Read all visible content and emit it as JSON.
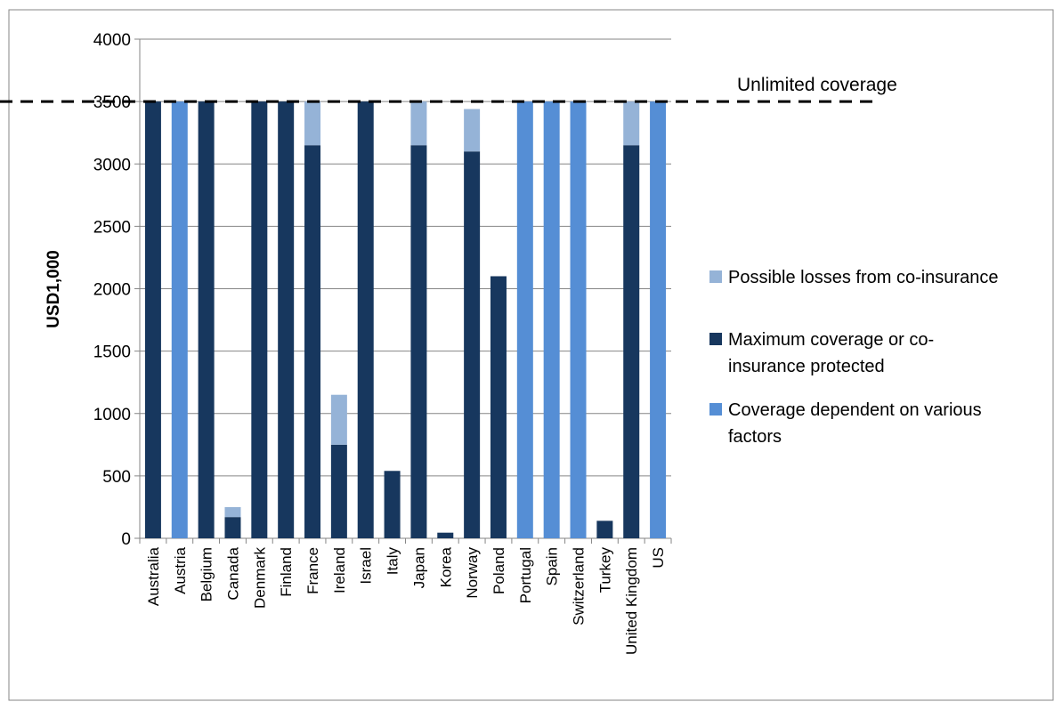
{
  "chart_data": {
    "type": "bar",
    "stacked": true,
    "ylabel": "USD1,000",
    "xlabel": "",
    "ylim": [
      0,
      4000
    ],
    "yticks": [
      0,
      500,
      1000,
      1500,
      2000,
      2500,
      3000,
      3500,
      4000
    ],
    "grid": true,
    "legend_position": "right",
    "categories": [
      "Australia",
      "Austria",
      "Belgium",
      "Canada",
      "Denmark",
      "Finland",
      "France",
      "Ireland",
      "Israel",
      "Italy",
      "Japan",
      "Korea",
      "Norway",
      "Poland",
      "Portugal",
      "Spain",
      "Switzerland",
      "Turkey",
      "United Kingdom",
      "US"
    ],
    "series": [
      {
        "name": "Maximum coverage or co-insurance protected",
        "color": "#17375e",
        "values": [
          3500,
          0,
          3500,
          170,
          3500,
          3500,
          3150,
          750,
          3500,
          540,
          3150,
          45,
          3100,
          2100,
          0,
          0,
          0,
          140,
          3150,
          0
        ]
      },
      {
        "name": "Possible losses from co-insurance",
        "color": "#95b3d7",
        "values": [
          0,
          0,
          0,
          80,
          0,
          0,
          350,
          400,
          0,
          0,
          350,
          0,
          340,
          0,
          0,
          0,
          0,
          0,
          350,
          0
        ]
      },
      {
        "name": "Coverage dependent on various factors",
        "color": "#558ed5",
        "values": [
          0,
          3500,
          0,
          0,
          0,
          0,
          0,
          0,
          0,
          0,
          0,
          0,
          0,
          0,
          3500,
          3500,
          3500,
          0,
          0,
          3500
        ]
      }
    ],
    "legend": [
      {
        "name": "Possible losses from co-insurance",
        "color": "#95b3d7",
        "lines": [
          "Possible losses from co-insurance"
        ]
      },
      {
        "name": "Maximum coverage or co-insurance protected",
        "color": "#17375e",
        "lines": [
          "Maximum coverage or co-",
          "insurance protected"
        ]
      },
      {
        "name": "Coverage dependent on various factors",
        "color": "#558ed5",
        "lines": [
          "Coverage dependent on various",
          "factors"
        ]
      }
    ],
    "reference_line": {
      "y": 3500,
      "label": "Unlimited coverage",
      "style": "dashed"
    }
  }
}
